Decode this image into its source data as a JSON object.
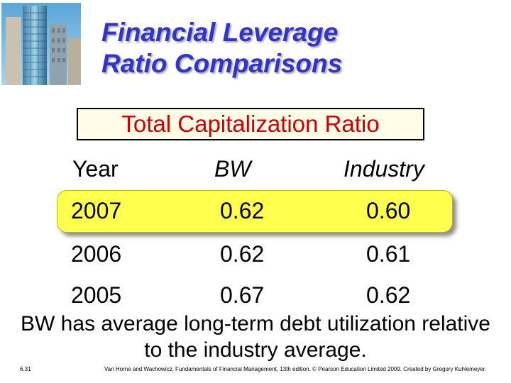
{
  "title": {
    "line1": "Financial Leverage",
    "line2": "Ratio Comparisons"
  },
  "subtitle": "Total Capitalization Ratio",
  "table": {
    "headers": [
      "Year",
      "BW",
      "Industry"
    ],
    "rows": [
      [
        "2007",
        "0.62",
        "0.60"
      ],
      [
        "2006",
        "0.62",
        "0.61"
      ],
      [
        "2005",
        "0.67",
        "0.62"
      ]
    ],
    "highlighted_row": 0
  },
  "note": "BW has average long-term debt utilization relative to the industry average.",
  "slide_number": "6.31",
  "footer": "Van Horne and Wachowicz, Fundamentals of Financial Management, 13th edition. © Pearson Education Limited 2009. Created by Gregory Kuhlemeyer.",
  "colors": {
    "title": "#3333cc",
    "subtitle": "#cc0000",
    "highlight": "#ffff4d"
  },
  "logo_icon": "office-buildings-icon"
}
